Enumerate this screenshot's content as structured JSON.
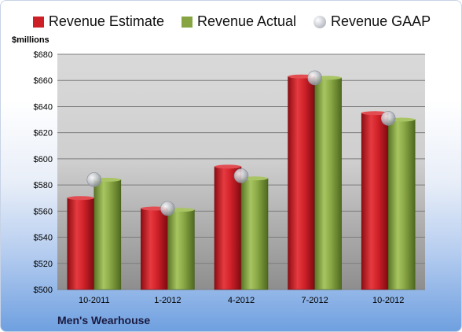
{
  "chart_data": {
    "type": "bar",
    "categories": [
      "10-2011",
      "1-2012",
      "4-2012",
      "7-2012",
      "10-2012"
    ],
    "series": [
      {
        "name": "Revenue Estimate",
        "type": "bar",
        "color": "#cc1f26",
        "values": [
          570,
          562,
          594,
          663,
          635
        ]
      },
      {
        "name": "Revenue Actual",
        "type": "bar",
        "color": "#86a442",
        "values": [
          584,
          561,
          585,
          662,
          630
        ]
      },
      {
        "name": "Revenue GAAP",
        "type": "scatter",
        "color": "#b9bcc4",
        "values": [
          584,
          562,
          587,
          662,
          631
        ]
      }
    ],
    "ylabel": "$millions",
    "ylim": [
      500,
      680
    ],
    "yticks": [
      "$500",
      "$520",
      "$540",
      "$560",
      "$580",
      "$600",
      "$620",
      "$640",
      "$660",
      "$680"
    ],
    "ytick_values": [
      500,
      520,
      540,
      560,
      580,
      600,
      620,
      640,
      660,
      680
    ],
    "grid": true,
    "legend_position": "top"
  },
  "footer": {
    "company": "Men's Wearhouse"
  }
}
